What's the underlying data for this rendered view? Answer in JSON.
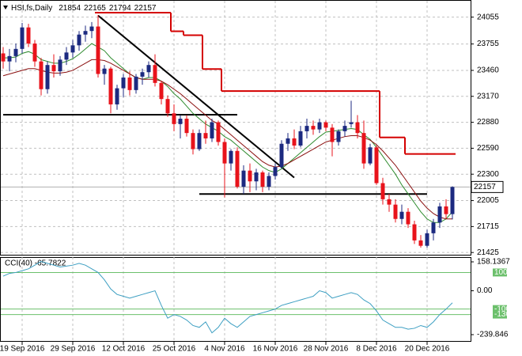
{
  "chart_data": [
    {
      "type": "candlestick",
      "title": "HSI,fs,Daily",
      "categories": [
        null,
        null,
        null,
        "19 Sep 2016",
        null,
        null,
        null,
        null,
        null,
        null,
        null,
        "29 Sep 2016",
        null,
        null,
        null,
        null,
        null,
        null,
        null,
        "12 Oct 2016",
        null,
        null,
        null,
        null,
        null,
        null,
        null,
        "25 Oct 2016",
        null,
        null,
        null,
        null,
        null,
        null,
        null,
        "4 Nov 2016",
        null,
        null,
        null,
        null,
        null,
        null,
        null,
        "16 Nov 2016",
        null,
        null,
        null,
        null,
        null,
        null,
        null,
        "28 Nov 2016",
        null,
        null,
        null,
        null,
        null,
        null,
        null,
        "8 Dec 2016",
        null,
        null,
        null,
        null,
        null,
        null,
        null,
        "20 Dec 2016",
        null,
        null,
        null,
        null
      ],
      "open": [
        23650,
        23560,
        23620,
        23700,
        23940,
        23760,
        23560,
        23250,
        23520,
        23450,
        23580,
        23660,
        23740,
        23860,
        23900,
        23950,
        23420,
        23480,
        23080,
        23260,
        23380,
        23240,
        23390,
        23440,
        23520,
        23320,
        23140,
        22980,
        22860,
        22920,
        22760,
        22580,
        22760,
        22700,
        22880,
        22660,
        22420,
        22560,
        22160,
        22340,
        22220,
        22320,
        22160,
        22280,
        22380,
        22640,
        22700,
        22620,
        22780,
        22840,
        22800,
        22880,
        22820,
        22660,
        22780,
        22860,
        22880,
        22760,
        22420,
        22600,
        22200,
        22020,
        21960,
        21800,
        21880,
        21740,
        21560,
        21500,
        21640,
        21760,
        21940,
        21854
      ],
      "high": [
        23720,
        23700,
        23760,
        23990,
        23980,
        23800,
        23600,
        23560,
        23640,
        23620,
        23720,
        23800,
        23900,
        23960,
        24000,
        24080,
        23520,
        23500,
        23300,
        23420,
        23450,
        23420,
        23480,
        23560,
        23640,
        23340,
        23180,
        23080,
        22960,
        22960,
        22800,
        22800,
        22900,
        22920,
        22900,
        22700,
        22580,
        22600,
        22400,
        22420,
        22360,
        22340,
        22320,
        22420,
        22680,
        22760,
        22800,
        22840,
        22920,
        22900,
        22920,
        22900,
        22860,
        22800,
        22900,
        23120,
        22960,
        22900,
        22640,
        22620,
        22260,
        22080,
        22020,
        21960,
        21920,
        21780,
        21620,
        21680,
        21800,
        21980,
        22020,
        22165
      ],
      "low": [
        23480,
        23450,
        23550,
        23650,
        23720,
        23500,
        23180,
        23200,
        23380,
        23400,
        23520,
        23600,
        23680,
        23780,
        23820,
        23380,
        23300,
        22980,
        23020,
        23160,
        23180,
        23200,
        23300,
        23380,
        23280,
        23080,
        22940,
        22780,
        22700,
        22720,
        22520,
        22560,
        22640,
        22660,
        22620,
        22040,
        22340,
        22140,
        22080,
        22100,
        22120,
        22100,
        22120,
        22240,
        22360,
        22560,
        22580,
        22600,
        22700,
        22740,
        22760,
        22780,
        22500,
        22620,
        22720,
        22820,
        22700,
        22360,
        22400,
        22180,
        21960,
        21880,
        21760,
        21740,
        21700,
        21520,
        21480,
        21480,
        21560,
        21700,
        21800,
        21794
      ],
      "close": [
        23560,
        23620,
        23700,
        23940,
        23760,
        23560,
        23250,
        23520,
        23450,
        23580,
        23660,
        23740,
        23860,
        23900,
        23950,
        23420,
        23480,
        23080,
        23260,
        23380,
        23240,
        23390,
        23440,
        23520,
        23320,
        23140,
        22980,
        22860,
        22920,
        22760,
        22580,
        22760,
        22700,
        22880,
        22660,
        22420,
        22560,
        22160,
        22340,
        22220,
        22320,
        22160,
        22280,
        22380,
        22640,
        22700,
        22620,
        22780,
        22840,
        22800,
        22880,
        22820,
        22660,
        22780,
        22840,
        22880,
        22760,
        22420,
        22600,
        22200,
        22020,
        21960,
        21800,
        21880,
        21740,
        21560,
        21500,
        21640,
        21760,
        21940,
        21854,
        22157
      ],
      "up_color": "#1c2a80",
      "down_color": "#e8131b",
      "series": [
        {
          "color": "#2e8b2e",
          "values": [
            23600,
            23600,
            23610,
            23650,
            23670,
            23640,
            23580,
            23560,
            23540,
            23540,
            23560,
            23590,
            23640,
            23700,
            23760,
            23720,
            23680,
            23600,
            23540,
            23480,
            23420,
            23380,
            23360,
            23380,
            23380,
            23340,
            23280,
            23200,
            23140,
            23060,
            22980,
            22920,
            22860,
            22820,
            22780,
            22720,
            22680,
            22620,
            22560,
            22500,
            22440,
            22380,
            22340,
            22320,
            22360,
            22420,
            22480,
            22540,
            22600,
            22660,
            22720,
            22770,
            22780,
            22790,
            22800,
            22810,
            22800,
            22740,
            22690,
            22600,
            22500,
            22400,
            22300,
            22180,
            22080,
            21980,
            21880,
            21800,
            21760,
            21760,
            21800,
            21880
          ]
        },
        {
          "color": "#8b1010",
          "values": [
            23400,
            23420,
            23440,
            23460,
            23480,
            23480,
            23460,
            23440,
            23430,
            23430,
            23440,
            23460,
            23500,
            23540,
            23580,
            23580,
            23570,
            23540,
            23500,
            23460,
            23420,
            23380,
            23360,
            23360,
            23360,
            23340,
            23300,
            23250,
            23200,
            23140,
            23080,
            23020,
            22960,
            22900,
            22860,
            22800,
            22740,
            22680,
            22620,
            22560,
            22500,
            22440,
            22400,
            22380,
            22390,
            22420,
            22460,
            22500,
            22540,
            22580,
            22620,
            22660,
            22680,
            22700,
            22720,
            22730,
            22730,
            22710,
            22680,
            22630,
            22560,
            22480,
            22400,
            22300,
            22200,
            22100,
            22000,
            21920,
            21860,
            21820,
            21800,
            21800
          ]
        },
        {
          "color": "#d40000",
          "values": [
            null,
            null,
            null,
            null,
            null,
            null,
            null,
            null,
            null,
            null,
            null,
            null,
            null,
            null,
            null,
            24105,
            24105,
            24105,
            24105,
            24105,
            24105,
            24105,
            24105,
            24105,
            24105,
            24105,
            24105,
            23897,
            23897,
            23853,
            23853,
            23853,
            23475,
            23475,
            23475,
            23229,
            23229,
            23229,
            23229,
            23229,
            23229,
            23229,
            23229,
            23229,
            23229,
            23229,
            23229,
            23229,
            23229,
            23229,
            23229,
            23229,
            23229,
            23229,
            23229,
            23229,
            23229,
            23229,
            23229,
            23229,
            22711,
            22711,
            22711,
            22711,
            22526,
            22526,
            22526,
            22526,
            22526,
            22526,
            22526,
            22526
          ]
        }
      ],
      "lines": [
        {
          "x": [
            0,
            37
          ],
          "y": [
            22965,
            22965
          ]
        },
        {
          "x": [
            31,
            67
          ],
          "y": [
            22078,
            22078
          ]
        },
        {
          "x": [
            15,
            46
          ],
          "y": [
            24073,
            22262
          ]
        }
      ],
      "line_color": "#000000",
      "ylim": [
        21400,
        24220
      ],
      "yticks": [
        24055,
        23755,
        23460,
        23170,
        22880,
        22590,
        22300,
        22005,
        21715,
        21425
      ],
      "grid": true
    },
    {
      "type": "line",
      "title": "CCI(40) -65.7822",
      "values": [
        80,
        95,
        100,
        110,
        120,
        140,
        160,
        150,
        140,
        130,
        135,
        140,
        150,
        140,
        120,
        100,
        60,
        10,
        -20,
        -30,
        -40,
        -30,
        -20,
        -10,
        0,
        -80,
        -150,
        -130,
        -140,
        -160,
        -190,
        -200,
        -170,
        -230,
        -200,
        -150,
        -180,
        -200,
        -170,
        -140,
        -130,
        -120,
        -110,
        -100,
        -80,
        -70,
        -60,
        -50,
        -40,
        -30,
        0,
        -10,
        -40,
        -30,
        -20,
        -10,
        -20,
        -50,
        -70,
        -110,
        -160,
        -180,
        -200,
        -200,
        -210,
        -205,
        -190,
        -200,
        -170,
        -130,
        -100,
        -65.7822
      ],
      "color": "#3d9fc2",
      "ylim": [
        -239.846,
        158.1367
      ],
      "yticks": [
        {
          "value": 0,
          "label": "0.00"
        }
      ],
      "levels": [
        100,
        -100,
        -130
      ],
      "level_color": "#6cc06c"
    }
  ]
}
